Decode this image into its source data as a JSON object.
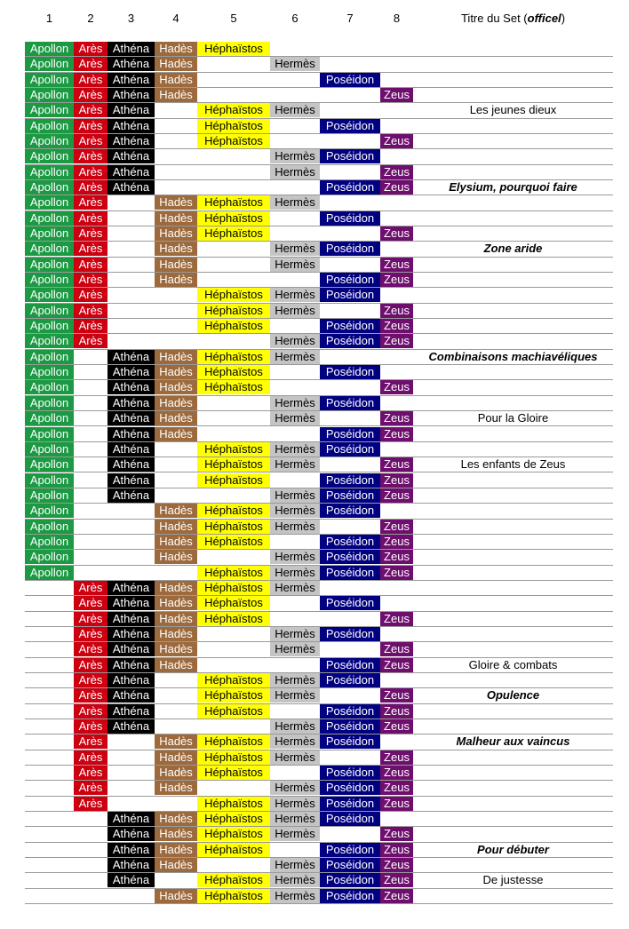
{
  "header": {
    "columns": [
      "1",
      "2",
      "3",
      "4",
      "5",
      "6",
      "7",
      "8"
    ],
    "title_prefix": "Titre du Set (",
    "title_emphasis": "officel",
    "title_suffix": ")"
  },
  "column_colors": [
    {
      "fill": "#1b9a43",
      "text": "#ffffff"
    },
    {
      "fill": "#cc0010",
      "text": "#ffffff"
    },
    {
      "fill": "#000000",
      "text": "#ffffff"
    },
    {
      "fill": "#9c6a3c",
      "text": "#ffffff"
    },
    {
      "fill": "#ffff00",
      "text": "#000000"
    },
    {
      "fill": "#c4c4c4",
      "text": "#000000"
    },
    {
      "fill": "#000080",
      "text": "#ffffff"
    },
    {
      "fill": "#6e0f6e",
      "text": "#ffffff"
    }
  ],
  "rows": [
    {
      "cells": [
        "Apollon",
        "Arès",
        "Athéna",
        "Hadès",
        "Héphaïstos",
        null,
        null,
        null
      ]
    },
    {
      "cells": [
        "Apollon",
        "Arès",
        "Athéna",
        "Hadès",
        null,
        "Hermès",
        null,
        null
      ]
    },
    {
      "cells": [
        "Apollon",
        "Arès",
        "Athéna",
        "Hadès",
        null,
        null,
        "Poséidon",
        null
      ]
    },
    {
      "cells": [
        "Apollon",
        "Arès",
        "Athéna",
        "Hadès",
        null,
        null,
        null,
        "Zeus"
      ]
    },
    {
      "cells": [
        "Apollon",
        "Arès",
        "Athéna",
        null,
        "Héphaïstos",
        "Hermès",
        null,
        null
      ],
      "title": "Les jeunes dieux"
    },
    {
      "cells": [
        "Apollon",
        "Arès",
        "Athéna",
        null,
        "Héphaïstos",
        null,
        "Poséidon",
        null
      ]
    },
    {
      "cells": [
        "Apollon",
        "Arès",
        "Athéna",
        null,
        "Héphaïstos",
        null,
        null,
        "Zeus"
      ]
    },
    {
      "cells": [
        "Apollon",
        "Arès",
        "Athéna",
        null,
        null,
        "Hermès",
        "Poséidon",
        null
      ]
    },
    {
      "cells": [
        "Apollon",
        "Arès",
        "Athéna",
        null,
        null,
        "Hermès",
        null,
        "Zeus"
      ]
    },
    {
      "cells": [
        "Apollon",
        "Arès",
        "Athéna",
        null,
        null,
        null,
        "Poséidon",
        "Zeus"
      ],
      "title": "Elysium, pourquoi faire",
      "emphasis": true
    },
    {
      "cells": [
        "Apollon",
        "Arès",
        null,
        "Hadès",
        "Héphaïstos",
        "Hermès",
        null,
        null
      ]
    },
    {
      "cells": [
        "Apollon",
        "Arès",
        null,
        "Hadès",
        "Héphaïstos",
        null,
        "Poséidon",
        null
      ]
    },
    {
      "cells": [
        "Apollon",
        "Arès",
        null,
        "Hadès",
        "Héphaïstos",
        null,
        null,
        "Zeus"
      ]
    },
    {
      "cells": [
        "Apollon",
        "Arès",
        null,
        "Hadès",
        null,
        "Hermès",
        "Poséidon",
        null
      ],
      "title": "Zone aride",
      "emphasis": true
    },
    {
      "cells": [
        "Apollon",
        "Arès",
        null,
        "Hadès",
        null,
        "Hermès",
        null,
        "Zeus"
      ]
    },
    {
      "cells": [
        "Apollon",
        "Arès",
        null,
        "Hadès",
        null,
        null,
        "Poséidon",
        "Zeus"
      ]
    },
    {
      "cells": [
        "Apollon",
        "Arès",
        null,
        null,
        "Héphaïstos",
        "Hermès",
        "Poséidon",
        null
      ]
    },
    {
      "cells": [
        "Apollon",
        "Arès",
        null,
        null,
        "Héphaïstos",
        "Hermès",
        null,
        "Zeus"
      ]
    },
    {
      "cells": [
        "Apollon",
        "Arès",
        null,
        null,
        "Héphaïstos",
        null,
        "Poséidon",
        "Zeus"
      ]
    },
    {
      "cells": [
        "Apollon",
        "Arès",
        null,
        null,
        null,
        "Hermès",
        "Poséidon",
        "Zeus"
      ]
    },
    {
      "cells": [
        "Apollon",
        null,
        "Athéna",
        "Hadès",
        "Héphaïstos",
        "Hermès",
        null,
        null
      ],
      "title": "Combinaisons machiavéliques",
      "emphasis": true
    },
    {
      "cells": [
        "Apollon",
        null,
        "Athéna",
        "Hadès",
        "Héphaïstos",
        null,
        "Poséidon",
        null
      ]
    },
    {
      "cells": [
        "Apollon",
        null,
        "Athéna",
        "Hadès",
        "Héphaïstos",
        null,
        null,
        "Zeus"
      ]
    },
    {
      "cells": [
        "Apollon",
        null,
        "Athéna",
        "Hadès",
        null,
        "Hermès",
        "Poséidon",
        null
      ]
    },
    {
      "cells": [
        "Apollon",
        null,
        "Athéna",
        "Hadès",
        null,
        "Hermès",
        null,
        "Zeus"
      ],
      "title": "Pour la Gloire"
    },
    {
      "cells": [
        "Apollon",
        null,
        "Athéna",
        "Hadès",
        null,
        null,
        "Poséidon",
        "Zeus"
      ]
    },
    {
      "cells": [
        "Apollon",
        null,
        "Athéna",
        null,
        "Héphaïstos",
        "Hermès",
        "Poséidon",
        null
      ]
    },
    {
      "cells": [
        "Apollon",
        null,
        "Athéna",
        null,
        "Héphaïstos",
        "Hermès",
        null,
        "Zeus"
      ],
      "title": "Les enfants de Zeus"
    },
    {
      "cells": [
        "Apollon",
        null,
        "Athéna",
        null,
        "Héphaïstos",
        null,
        "Poséidon",
        "Zeus"
      ]
    },
    {
      "cells": [
        "Apollon",
        null,
        "Athéna",
        null,
        null,
        "Hermès",
        "Poséidon",
        "Zeus"
      ]
    },
    {
      "cells": [
        "Apollon",
        null,
        null,
        "Hadès",
        "Héphaïstos",
        "Hermès",
        "Poséidon",
        null
      ]
    },
    {
      "cells": [
        "Apollon",
        null,
        null,
        "Hadès",
        "Héphaïstos",
        "Hermès",
        null,
        "Zeus"
      ]
    },
    {
      "cells": [
        "Apollon",
        null,
        null,
        "Hadès",
        "Héphaïstos",
        null,
        "Poséidon",
        "Zeus"
      ]
    },
    {
      "cells": [
        "Apollon",
        null,
        null,
        "Hadès",
        null,
        "Hermès",
        "Poséidon",
        "Zeus"
      ]
    },
    {
      "cells": [
        "Apollon",
        null,
        null,
        null,
        "Héphaïstos",
        "Hermès",
        "Poséidon",
        "Zeus"
      ]
    },
    {
      "cells": [
        null,
        "Arès",
        "Athéna",
        "Hadès",
        "Héphaïstos",
        "Hermès",
        null,
        null
      ]
    },
    {
      "cells": [
        null,
        "Arès",
        "Athéna",
        "Hadès",
        "Héphaïstos",
        null,
        "Poséidon",
        null
      ]
    },
    {
      "cells": [
        null,
        "Arès",
        "Athéna",
        "Hadès",
        "Héphaïstos",
        null,
        null,
        "Zeus"
      ]
    },
    {
      "cells": [
        null,
        "Arès",
        "Athéna",
        "Hadès",
        null,
        "Hermès",
        "Poséidon",
        null
      ]
    },
    {
      "cells": [
        null,
        "Arès",
        "Athéna",
        "Hadès",
        null,
        "Hermès",
        null,
        "Zeus"
      ]
    },
    {
      "cells": [
        null,
        "Arès",
        "Athéna",
        "Hadès",
        null,
        null,
        "Poséidon",
        "Zeus"
      ],
      "title": "Gloire & combats"
    },
    {
      "cells": [
        null,
        "Arès",
        "Athéna",
        null,
        "Héphaïstos",
        "Hermès",
        "Poséidon",
        null
      ]
    },
    {
      "cells": [
        null,
        "Arès",
        "Athéna",
        null,
        "Héphaïstos",
        "Hermès",
        null,
        "Zeus"
      ],
      "title": "Opulence",
      "emphasis": true
    },
    {
      "cells": [
        null,
        "Arès",
        "Athéna",
        null,
        "Héphaïstos",
        null,
        "Poséidon",
        "Zeus"
      ]
    },
    {
      "cells": [
        null,
        "Arès",
        "Athéna",
        null,
        null,
        "Hermès",
        "Poséidon",
        "Zeus"
      ]
    },
    {
      "cells": [
        null,
        "Arès",
        null,
        "Hadès",
        "Héphaïstos",
        "Hermès",
        "Poséidon",
        null
      ],
      "title": "Malheur aux vaincus",
      "emphasis": true
    },
    {
      "cells": [
        null,
        "Arès",
        null,
        "Hadès",
        "Héphaïstos",
        "Hermès",
        null,
        "Zeus"
      ]
    },
    {
      "cells": [
        null,
        "Arès",
        null,
        "Hadès",
        "Héphaïstos",
        null,
        "Poséidon",
        "Zeus"
      ]
    },
    {
      "cells": [
        null,
        "Arès",
        null,
        "Hadès",
        null,
        "Hermès",
        "Poséidon",
        "Zeus"
      ]
    },
    {
      "cells": [
        null,
        "Arès",
        null,
        null,
        "Héphaïstos",
        "Hermès",
        "Poséidon",
        "Zeus"
      ]
    },
    {
      "cells": [
        null,
        null,
        "Athéna",
        "Hadès",
        "Héphaïstos",
        "Hermès",
        "Poséidon",
        null
      ]
    },
    {
      "cells": [
        null,
        null,
        "Athéna",
        "Hadès",
        "Héphaïstos",
        "Hermès",
        null,
        "Zeus"
      ]
    },
    {
      "cells": [
        null,
        null,
        "Athéna",
        "Hadès",
        "Héphaïstos",
        null,
        "Poséidon",
        "Zeus"
      ],
      "title": "Pour débuter",
      "emphasis": true
    },
    {
      "cells": [
        null,
        null,
        "Athéna",
        "Hadès",
        null,
        "Hermès",
        "Poséidon",
        "Zeus"
      ]
    },
    {
      "cells": [
        null,
        null,
        "Athéna",
        null,
        "Héphaïstos",
        "Hermès",
        "Poséidon",
        "Zeus"
      ],
      "title": "De justesse"
    },
    {
      "cells": [
        null,
        null,
        null,
        "Hadès",
        "Héphaïstos",
        "Hermès",
        "Poséidon",
        "Zeus"
      ]
    }
  ]
}
